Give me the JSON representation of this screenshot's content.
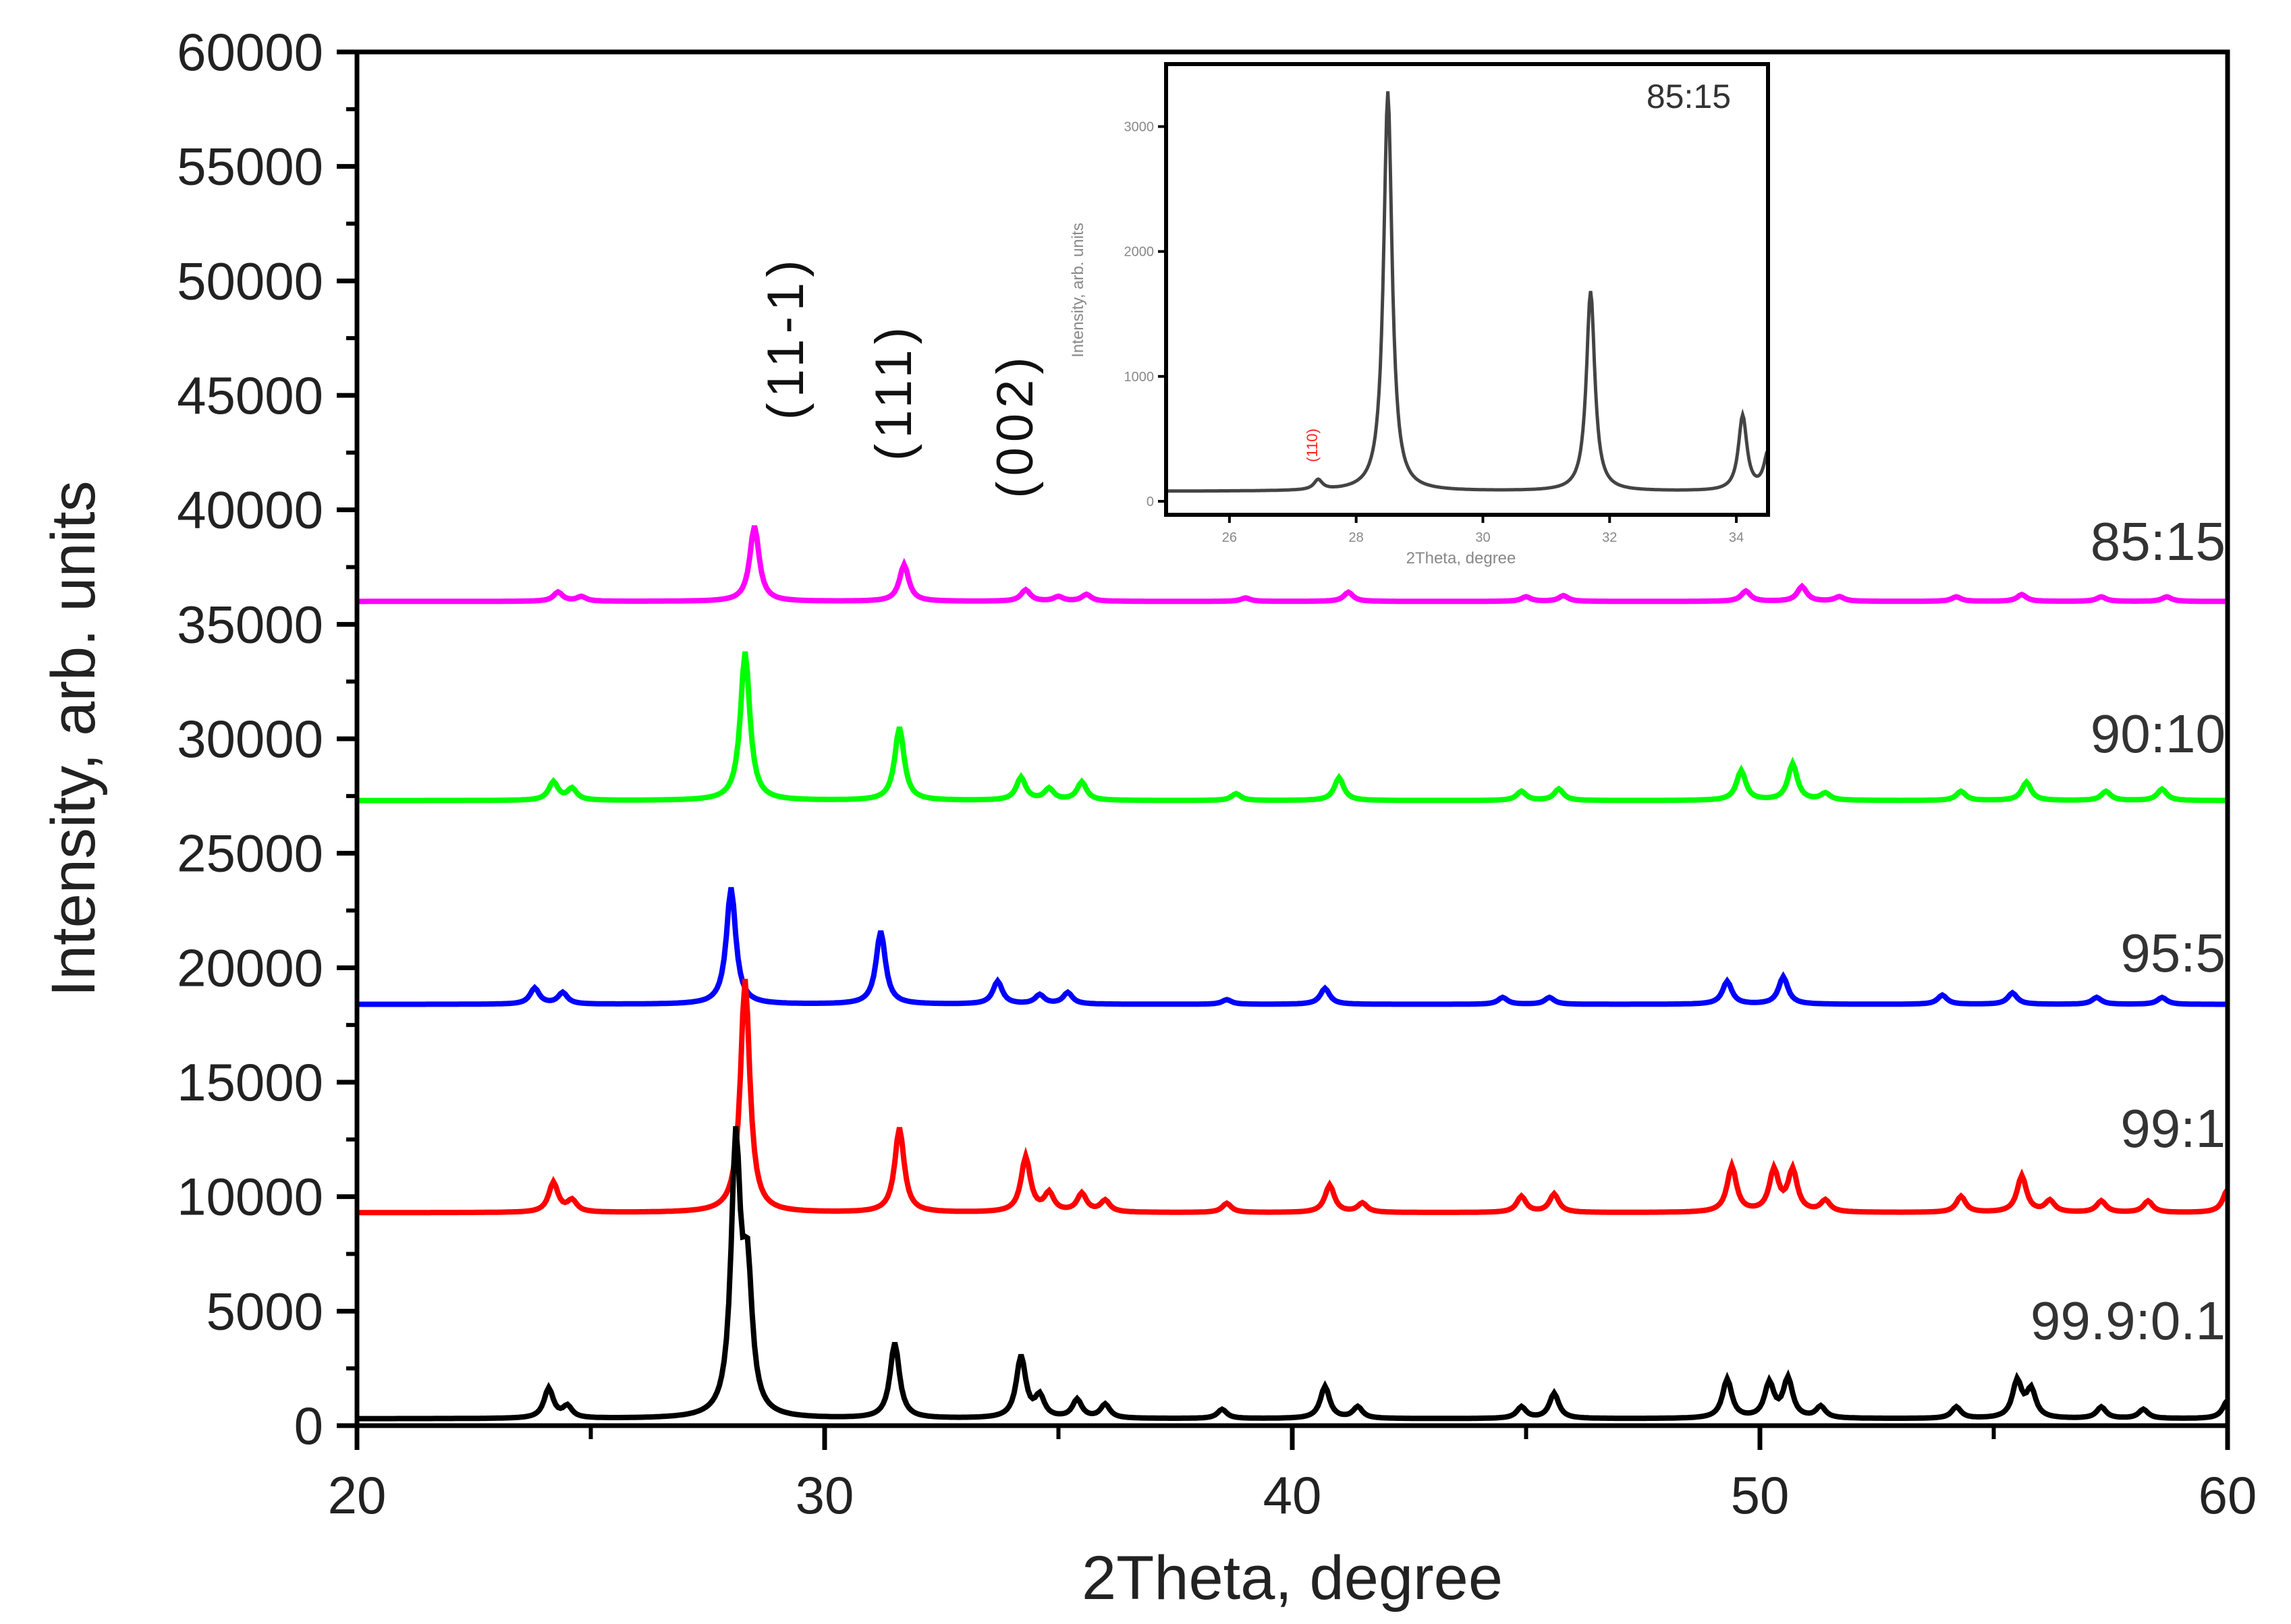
{
  "chart_data": {
    "type": "line",
    "title": "",
    "xlabel": "2Theta, degree",
    "ylabel": "Intensity, arb. units",
    "xlim": [
      20,
      60
    ],
    "ylim": [
      0,
      60000
    ],
    "x_ticks": [
      "20",
      "30",
      "40",
      "50",
      "60"
    ],
    "y_ticks": [
      "0",
      "5000",
      "10000",
      "15000",
      "20000",
      "25000",
      "30000",
      "35000",
      "40000",
      "45000",
      "50000",
      "55000",
      "60000"
    ],
    "grid": false,
    "legend_position": "inline-right",
    "peak_annotations": [
      {
        "label": "(11-1)",
        "x": 29.0
      },
      {
        "label": "(111)",
        "x": 31.7
      },
      {
        "label": "(002)",
        "x": 34.2
      }
    ],
    "series": [
      {
        "name": "85:15",
        "color": "#ff00ff",
        "baseline": 36000,
        "peaks": [
          [
            24.3,
            400
          ],
          [
            24.8,
            200
          ],
          [
            28.5,
            3300
          ],
          [
            31.7,
            1600
          ],
          [
            34.3,
            500
          ],
          [
            35.0,
            200
          ],
          [
            35.6,
            300
          ],
          [
            39.0,
            150
          ],
          [
            41.2,
            400
          ],
          [
            45.0,
            200
          ],
          [
            45.8,
            250
          ],
          [
            49.7,
            450
          ],
          [
            50.9,
            650
          ],
          [
            51.7,
            200
          ],
          [
            54.2,
            200
          ],
          [
            55.6,
            300
          ],
          [
            57.3,
            200
          ],
          [
            58.7,
            200
          ]
        ]
      },
      {
        "name": "90:10",
        "color": "#00ff00",
        "baseline": 27300,
        "peaks": [
          [
            24.2,
            800
          ],
          [
            24.6,
            500
          ],
          [
            28.3,
            6500
          ],
          [
            31.6,
            3200
          ],
          [
            34.2,
            1000
          ],
          [
            34.8,
            500
          ],
          [
            35.5,
            800
          ],
          [
            38.8,
            300
          ],
          [
            41.0,
            1000
          ],
          [
            44.9,
            400
          ],
          [
            45.7,
            500
          ],
          [
            49.6,
            1300
          ],
          [
            50.7,
            1600
          ],
          [
            51.4,
            300
          ],
          [
            54.3,
            400
          ],
          [
            55.7,
            800
          ],
          [
            57.4,
            400
          ],
          [
            58.6,
            500
          ]
        ]
      },
      {
        "name": "95:5",
        "color": "#0000ff",
        "baseline": 18400,
        "peaks": [
          [
            23.8,
            700
          ],
          [
            24.4,
            500
          ],
          [
            28.0,
            5100
          ],
          [
            31.2,
            3200
          ],
          [
            33.7,
            1000
          ],
          [
            34.6,
            400
          ],
          [
            35.2,
            500
          ],
          [
            38.6,
            200
          ],
          [
            40.7,
            700
          ],
          [
            44.5,
            300
          ],
          [
            45.5,
            300
          ],
          [
            49.3,
            1000
          ],
          [
            50.5,
            1200
          ],
          [
            53.9,
            400
          ],
          [
            55.4,
            500
          ],
          [
            57.2,
            300
          ],
          [
            58.6,
            300
          ]
        ]
      },
      {
        "name": "99:1",
        "color": "#ff0000",
        "baseline": 9300,
        "peaks": [
          [
            24.2,
            1300
          ],
          [
            24.6,
            500
          ],
          [
            28.3,
            10200
          ],
          [
            31.6,
            3700
          ],
          [
            34.3,
            2400
          ],
          [
            34.8,
            800
          ],
          [
            35.5,
            800
          ],
          [
            36.0,
            500
          ],
          [
            38.6,
            400
          ],
          [
            40.8,
            1200
          ],
          [
            41.5,
            400
          ],
          [
            44.9,
            700
          ],
          [
            45.6,
            800
          ],
          [
            49.4,
            2000
          ],
          [
            50.3,
            1800
          ],
          [
            50.7,
            1800
          ],
          [
            51.4,
            500
          ],
          [
            54.3,
            700
          ],
          [
            55.6,
            1600
          ],
          [
            56.2,
            500
          ],
          [
            57.3,
            500
          ],
          [
            58.3,
            500
          ],
          [
            60.0,
            1000
          ]
        ]
      },
      {
        "name": "99.9:0.1",
        "color": "#000000",
        "baseline": 300,
        "peaks": [
          [
            24.1,
            1300
          ],
          [
            24.5,
            500
          ],
          [
            28.1,
            11700
          ],
          [
            28.35,
            5700
          ],
          [
            31.5,
            3300
          ],
          [
            34.2,
            2700
          ],
          [
            34.6,
            900
          ],
          [
            35.4,
            800
          ],
          [
            36.0,
            600
          ],
          [
            38.5,
            400
          ],
          [
            40.7,
            1400
          ],
          [
            41.4,
            500
          ],
          [
            44.9,
            500
          ],
          [
            45.6,
            1100
          ],
          [
            49.3,
            1700
          ],
          [
            50.2,
            1500
          ],
          [
            50.6,
            1700
          ],
          [
            51.3,
            500
          ],
          [
            54.2,
            500
          ],
          [
            55.5,
            1600
          ],
          [
            55.8,
            1200
          ],
          [
            57.3,
            500
          ],
          [
            58.2,
            400
          ],
          [
            60.0,
            800
          ]
        ]
      }
    ],
    "inset": {
      "label": "85:15",
      "xlabel": "2Theta, degree",
      "ylabel": "Intensity, arb. units",
      "xlim": [
        25,
        34.5
      ],
      "ylim": [
        0,
        3500
      ],
      "x_ticks": [
        "26",
        "28",
        "30",
        "32",
        "34"
      ],
      "y_ticks": [
        "0",
        "1000",
        "2000",
        "3000"
      ],
      "annotation": {
        "label": "(110)",
        "x": 27.3,
        "color": "#ff2020"
      },
      "color": "#444444",
      "baseline": 80,
      "peaks": [
        [
          27.4,
          80
        ],
        [
          28.5,
          3200
        ],
        [
          31.7,
          1600
        ],
        [
          34.1,
          600
        ],
        [
          34.5,
          300
        ]
      ]
    }
  }
}
